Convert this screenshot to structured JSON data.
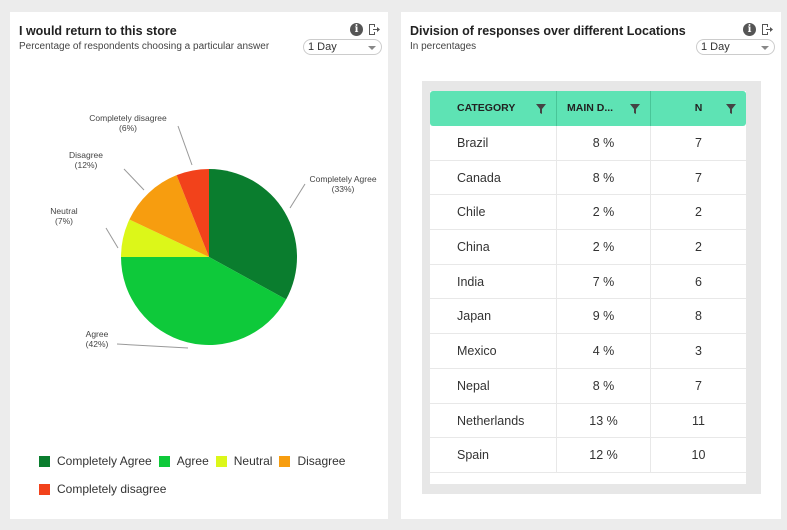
{
  "left_panel": {
    "title": "I would return to this store",
    "subtitle": "Percentage of respondents choosing a particular answer",
    "dropdown_value": "1 Day",
    "info_icon": "info-icon",
    "export_icon": "export-icon"
  },
  "right_panel": {
    "title": "Division of responses over different Locations",
    "subtitle": "In percentages",
    "dropdown_value": "1 Day",
    "info_icon": "info-icon",
    "export_icon": "export-icon",
    "table": {
      "columns": [
        "CATEGORY",
        "MAIN D...",
        "N"
      ],
      "rows": [
        {
          "category": "Brazil",
          "main": "8 %",
          "n": "7"
        },
        {
          "category": "Canada",
          "main": "8 %",
          "n": "7"
        },
        {
          "category": "Chile",
          "main": "2 %",
          "n": "2"
        },
        {
          "category": "China",
          "main": "2 %",
          "n": "2"
        },
        {
          "category": "India",
          "main": "7 %",
          "n": "6"
        },
        {
          "category": "Japan",
          "main": "9 %",
          "n": "8"
        },
        {
          "category": "Mexico",
          "main": "4 %",
          "n": "3"
        },
        {
          "category": "Nepal",
          "main": "8 %",
          "n": "7"
        },
        {
          "category": "Netherlands",
          "main": "13 %",
          "n": "11"
        },
        {
          "category": "Spain",
          "main": "12 %",
          "n": "10"
        }
      ],
      "header_color": "#5ee3b4"
    }
  },
  "chart_data": {
    "type": "pie",
    "slices": [
      {
        "name": "Completely Agree",
        "value": 33,
        "label": "(33%)",
        "color": "#0a7d2e"
      },
      {
        "name": "Agree",
        "value": 42,
        "label": "(42%)",
        "color": "#0ec93a"
      },
      {
        "name": "Neutral",
        "value": 7,
        "label": "(7%)",
        "color": "#dcf719"
      },
      {
        "name": "Disagree",
        "value": 12,
        "label": "(12%)",
        "color": "#f79d0f"
      },
      {
        "name": "Completely disagree",
        "value": 6,
        "label": "(6%)",
        "color": "#f2421b"
      }
    ],
    "legend": [
      "Completely Agree",
      "Agree",
      "Neutral",
      "Disagree",
      "Completely disagree"
    ],
    "legend_position": "bottom"
  }
}
